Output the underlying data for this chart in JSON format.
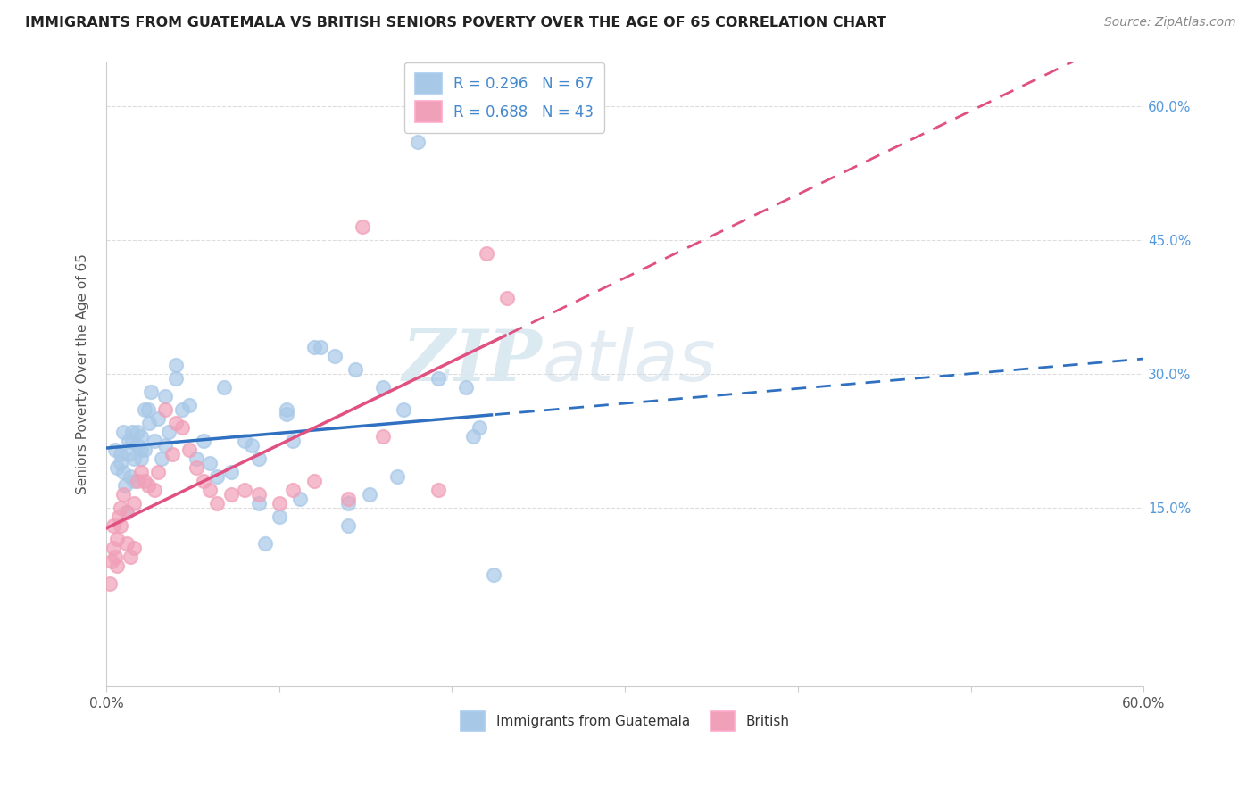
{
  "title": "IMMIGRANTS FROM GUATEMALA VS BRITISH SENIORS POVERTY OVER THE AGE OF 65 CORRELATION CHART",
  "source": "Source: ZipAtlas.com",
  "ylabel": "Seniors Poverty Over the Age of 65",
  "xlim": [
    0.0,
    0.6
  ],
  "ylim": [
    -0.05,
    0.65
  ],
  "xtick_pos": [
    0.0,
    0.1,
    0.2,
    0.3,
    0.4,
    0.5,
    0.6
  ],
  "xtick_labels": [
    "0.0%",
    "",
    "",
    "",
    "",
    "",
    "60.0%"
  ],
  "ytick_labels": [
    "15.0%",
    "30.0%",
    "45.0%",
    "60.0%"
  ],
  "ytick_positions": [
    0.15,
    0.3,
    0.45,
    0.6
  ],
  "color_blue": "#A8C8E8",
  "color_pink": "#F0A0B8",
  "line_blue": "#3070C0",
  "line_pink": "#E05080",
  "R_blue": 0.296,
  "N_blue": 67,
  "R_pink": 0.688,
  "N_pink": 43,
  "blue_x": [
    0.005,
    0.006,
    0.008,
    0.008,
    0.01,
    0.01,
    0.011,
    0.012,
    0.013,
    0.013,
    0.014,
    0.015,
    0.015,
    0.016,
    0.016,
    0.018,
    0.018,
    0.02,
    0.02,
    0.02,
    0.022,
    0.022,
    0.024,
    0.025,
    0.026,
    0.028,
    0.03,
    0.032,
    0.034,
    0.034,
    0.036,
    0.04,
    0.04,
    0.044,
    0.048,
    0.052,
    0.056,
    0.06,
    0.064,
    0.068,
    0.072,
    0.08,
    0.084,
    0.088,
    0.088,
    0.092,
    0.1,
    0.104,
    0.104,
    0.108,
    0.112,
    0.12,
    0.124,
    0.132,
    0.14,
    0.14,
    0.144,
    0.152,
    0.16,
    0.168,
    0.172,
    0.18,
    0.192,
    0.208,
    0.212,
    0.216,
    0.224
  ],
  "blue_y": [
    0.215,
    0.195,
    0.21,
    0.2,
    0.235,
    0.19,
    0.175,
    0.145,
    0.225,
    0.21,
    0.185,
    0.235,
    0.225,
    0.205,
    0.18,
    0.235,
    0.22,
    0.23,
    0.215,
    0.205,
    0.26,
    0.215,
    0.26,
    0.245,
    0.28,
    0.225,
    0.25,
    0.205,
    0.275,
    0.22,
    0.235,
    0.31,
    0.295,
    0.26,
    0.265,
    0.205,
    0.225,
    0.2,
    0.185,
    0.285,
    0.19,
    0.225,
    0.22,
    0.205,
    0.155,
    0.11,
    0.14,
    0.255,
    0.26,
    0.225,
    0.16,
    0.33,
    0.33,
    0.32,
    0.155,
    0.13,
    0.305,
    0.165,
    0.285,
    0.185,
    0.26,
    0.56,
    0.295,
    0.285,
    0.23,
    0.24,
    0.075
  ],
  "pink_x": [
    0.002,
    0.003,
    0.004,
    0.004,
    0.005,
    0.006,
    0.006,
    0.007,
    0.008,
    0.008,
    0.01,
    0.012,
    0.012,
    0.014,
    0.016,
    0.016,
    0.018,
    0.02,
    0.022,
    0.024,
    0.028,
    0.03,
    0.034,
    0.038,
    0.04,
    0.044,
    0.048,
    0.052,
    0.056,
    0.06,
    0.064,
    0.072,
    0.08,
    0.088,
    0.1,
    0.108,
    0.12,
    0.14,
    0.148,
    0.16,
    0.192,
    0.22,
    0.232
  ],
  "pink_y": [
    0.065,
    0.09,
    0.105,
    0.13,
    0.095,
    0.115,
    0.085,
    0.14,
    0.15,
    0.13,
    0.165,
    0.11,
    0.145,
    0.095,
    0.155,
    0.105,
    0.18,
    0.19,
    0.18,
    0.175,
    0.17,
    0.19,
    0.26,
    0.21,
    0.245,
    0.24,
    0.215,
    0.195,
    0.18,
    0.17,
    0.155,
    0.165,
    0.17,
    0.165,
    0.155,
    0.17,
    0.18,
    0.16,
    0.465,
    0.23,
    0.17,
    0.435,
    0.385
  ],
  "watermark_zip": "ZIP",
  "watermark_atlas": "atlas",
  "background_color": "#FFFFFF",
  "grid_color": "#DDDDDD"
}
